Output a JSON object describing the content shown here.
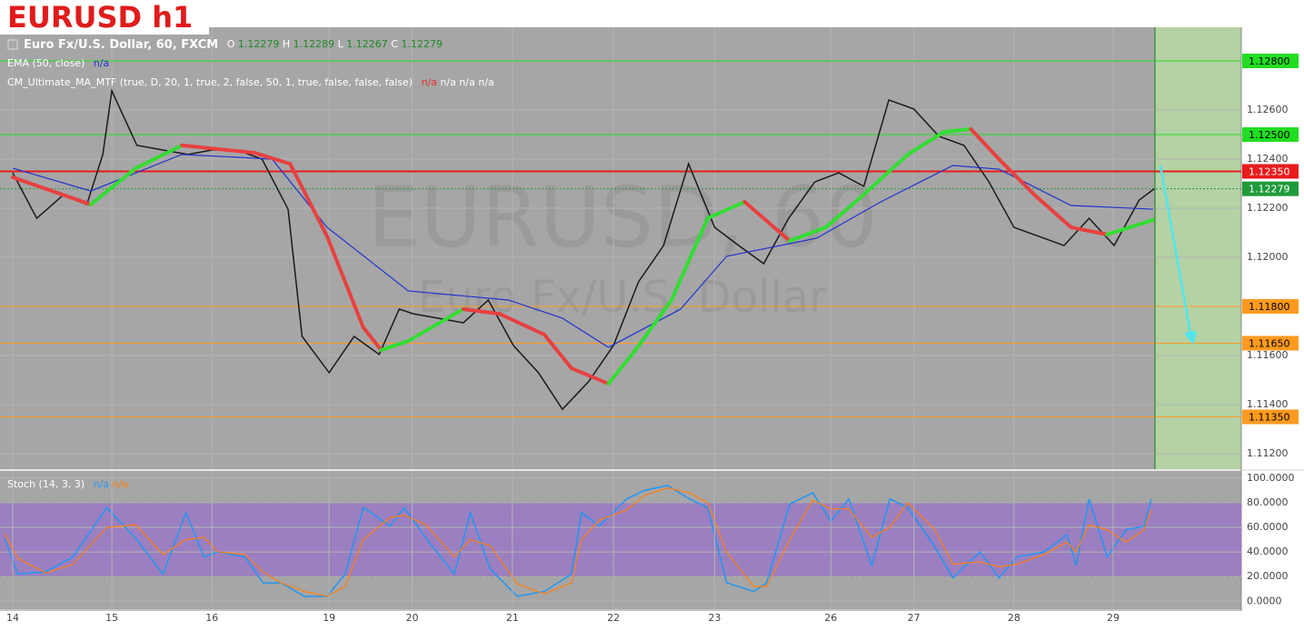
{
  "chart_data": [
    {
      "type": "line",
      "title": "EURUSD h1",
      "symbol": "Euro Fx/U.S. Dollar, 60, FXCM",
      "ohlc": [
        {
          "key": "O",
          "value": 1.12279
        },
        {
          "key": "H",
          "value": 1.12289
        },
        {
          "key": "L",
          "value": 1.12267
        },
        {
          "key": "C",
          "value": 1.12279
        }
      ],
      "indicators": [
        {
          "label": "EMA (50, close)",
          "values": [
            {
              "text": "n/a",
              "color": "#2233cc"
            }
          ]
        },
        {
          "label": "CM_Ultimate_MA_MTF (true, D, 20, 1, true, 2, false, 50, 1, true, false, false, false)",
          "values": [
            {
              "text": "n/a",
              "color": "#e83030"
            },
            {
              "text": "n/a n/a n/a",
              "color": "#ffffff"
            }
          ]
        }
      ],
      "watermark": [
        "EURUSD, 60",
        "Euro Fx/U.S. Dollar"
      ],
      "xlim": [
        -0.127,
        12.27
      ],
      "ylim": [
        1.11137,
        1.12937
      ],
      "yticks": [
        {
          "value": 1.112,
          "label": "1.11200"
        },
        {
          "value": 1.114,
          "label": "1.11400"
        },
        {
          "value": 1.116,
          "label": "1.11600"
        },
        {
          "value": 1.118,
          "label": "1.11800"
        },
        {
          "value": 1.12,
          "label": "1.12000"
        },
        {
          "value": 1.122,
          "label": "1.12200"
        },
        {
          "value": 1.124,
          "label": "1.12400"
        },
        {
          "value": 1.126,
          "label": "1.12600"
        }
      ],
      "grid": true,
      "series": [
        {
          "color": "#1a1a1a",
          "x": [
            0,
            0.24,
            0.5,
            0.74,
            0.9,
            0.99,
            1.24,
            1.5,
            1.75,
            1.99,
            2.24,
            2.49,
            2.75,
            2.89,
            3.16,
            3.41,
            3.66,
            3.86,
            4.0,
            4.25,
            4.5,
            4.75,
            5.0,
            5.25,
            5.49,
            5.75,
            6.0,
            6.25,
            6.5,
            6.75,
            7.01,
            7.25,
            7.5,
            7.75,
            8.01,
            8.25,
            8.5,
            8.75,
            9.0,
            9.25,
            9.5,
            9.75,
            10.0,
            10.25,
            10.5,
            10.75,
            11.0,
            11.25,
            11.4
          ],
          "values": [
            1.12344,
            1.12159,
            1.12252,
            1.12215,
            1.12419,
            1.12678,
            1.12456,
            1.12437,
            1.12419,
            1.12437,
            1.12437,
            1.124,
            1.12196,
            1.11678,
            1.1153,
            1.11678,
            1.11604,
            1.11789,
            1.1177,
            1.11752,
            1.11733,
            1.11826,
            1.11641,
            1.1153,
            1.11381,
            1.11493,
            1.11641,
            1.119,
            1.12048,
            1.12381,
            1.12122,
            1.12048,
            1.11974,
            1.12159,
            1.12307,
            1.12344,
            1.12289,
            1.12641,
            1.12604,
            1.12493,
            1.12456,
            1.12307,
            1.12122,
            1.12085,
            1.12048,
            1.12159,
            1.12048,
            1.12233,
            1.12279
          ]
        },
        {
          "color": "#2233cc",
          "x": [
            0,
            0.78,
            1.69,
            2.59,
            3.14,
            3.95,
            4.95,
            5.49,
            5.95,
            6.67,
            7.13,
            8.03,
            8.67,
            9.39,
            9.85,
            10.57,
            11.39
          ],
          "values": [
            1.12363,
            1.1227,
            1.12419,
            1.124,
            1.12122,
            1.11863,
            1.11826,
            1.11752,
            1.11633,
            1.11789,
            1.12004,
            1.12078,
            1.12226,
            1.12374,
            1.12359,
            1.12211,
            1.12196
          ]
        },
        {
          "color": "#33dd33",
          "down_color": "#e84040",
          "x": [
            0,
            0.78,
            1.23,
            1.69,
            2.41,
            2.77,
            3.14,
            3.5,
            3.68,
            3.95,
            4.5,
            4.86,
            5.31,
            5.58,
            5.95,
            6.22,
            6.58,
            6.94,
            7.31,
            7.76,
            8.12,
            8.49,
            8.94,
            9.3,
            9.57,
            9.85,
            10.21,
            10.57,
            10.93,
            11.39
          ],
          "values": [
            1.12326,
            1.12215,
            1.12363,
            1.12456,
            1.12426,
            1.12381,
            1.12085,
            1.11715,
            1.11622,
            1.11659,
            1.11789,
            1.1177,
            1.11685,
            1.11548,
            1.11485,
            1.11622,
            1.11826,
            1.12159,
            1.12226,
            1.12067,
            1.12122,
            1.12252,
            1.12419,
            1.12511,
            1.12522,
            1.124,
            1.12252,
            1.12122,
            1.12093,
            1.12152
          ]
        }
      ],
      "levels": [
        {
          "value": 1.128,
          "label": "1.12800",
          "color": "#22dd22",
          "text_color": "#000000"
        },
        {
          "value": 1.125,
          "label": "1.12500",
          "color": "#22dd22",
          "text_color": "#000000"
        },
        {
          "value": 1.1235,
          "label": "1.12350",
          "color": "#e81c1c",
          "text_color": "#ffffff"
        },
        {
          "value": 1.12279,
          "color": "#1f9a3a",
          "text_color": "#ffffff",
          "dashed": true
        },
        {
          "value": 1.118,
          "label": "1.11800",
          "color": "#ff9a1f",
          "text_color": "#000000"
        },
        {
          "value": 1.1165,
          "label": "1.11650",
          "color": "#ff9a1f",
          "text_color": "#000000"
        },
        {
          "value": 1.1135,
          "label": "1.11350",
          "color": "#ff9a1f",
          "text_color": "#000000"
        }
      ]
    },
    {
      "type": "line",
      "indicator": {
        "label": "Stoch (14, 3, 3)",
        "values": [
          {
            "text": "n/a",
            "color": "#2196f3"
          },
          {
            "text": "n/a",
            "color": "#ff7f0e"
          }
        ]
      },
      "xlim": [
        -0.127,
        12.27
      ],
      "xticks": [
        {
          "value": 0,
          "label": "14"
        },
        {
          "value": 0.99,
          "label": "15"
        },
        {
          "value": 1.99,
          "label": "16"
        },
        {
          "value": 3.16,
          "label": "19"
        },
        {
          "value": 3.99,
          "label": "20"
        },
        {
          "value": 4.99,
          "label": "21"
        },
        {
          "value": 6.0,
          "label": "22"
        },
        {
          "value": 7.01,
          "label": "23"
        },
        {
          "value": 8.17,
          "label": "26"
        },
        {
          "value": 9.0,
          "label": "27"
        },
        {
          "value": 10.0,
          "label": "28"
        },
        {
          "value": 10.99,
          "label": "29"
        }
      ],
      "ylim": [
        -6.43,
        103.57
      ],
      "yticks": [
        {
          "value": 0,
          "label": "0.0000"
        },
        {
          "value": 20,
          "label": "20.0000"
        },
        {
          "value": 40,
          "label": "40.0000"
        },
        {
          "value": 60,
          "label": "60.0000"
        },
        {
          "value": 80,
          "label": "80.0000"
        },
        {
          "value": 100,
          "label": "100.0000"
        }
      ],
      "band": [
        20,
        80
      ],
      "band_color": "#9b7fc0",
      "grid": true,
      "x": [
        -0.08,
        0.05,
        0.33,
        0.6,
        0.94,
        1.23,
        1.5,
        1.73,
        1.91,
        2.05,
        2.32,
        2.5,
        2.68,
        2.91,
        3.14,
        3.32,
        3.5,
        3.77,
        3.91,
        4.13,
        4.41,
        4.57,
        4.77,
        5.04,
        5.31,
        5.58,
        5.68,
        5.86,
        6.13,
        6.31,
        6.54,
        6.76,
        6.94,
        7.13,
        7.4,
        7.53,
        7.76,
        7.99,
        8.17,
        8.35,
        8.58,
        8.76,
        8.94,
        9.21,
        9.39,
        9.66,
        9.85,
        10.03,
        10.3,
        10.53,
        10.62,
        10.75,
        10.93,
        11.12,
        11.3,
        11.37
      ],
      "series": [
        {
          "color": "#2196f3",
          "values": [
            51,
            22,
            24,
            36,
            76,
            51,
            22,
            72,
            36,
            40,
            36,
            15,
            15,
            4,
            4,
            22,
            76,
            61,
            76,
            51,
            22,
            72,
            26,
            4,
            8,
            22,
            72,
            61,
            83,
            90,
            94,
            83,
            76,
            15,
            8,
            15,
            79,
            88,
            65,
            83,
            29,
            83,
            76,
            44,
            19,
            40,
            19,
            36,
            40,
            54,
            29,
            83,
            36,
            58,
            61,
            83
          ]
        },
        {
          "color": "#ff7f0e",
          "values": [
            55,
            35,
            23,
            30,
            60,
            62,
            38,
            50,
            52,
            40,
            38,
            24,
            15,
            8,
            4,
            12,
            50,
            68,
            70,
            62,
            36,
            50,
            45,
            14,
            6,
            15,
            50,
            66,
            74,
            86,
            92,
            88,
            80,
            40,
            12,
            12,
            50,
            82,
            75,
            75,
            52,
            60,
            80,
            58,
            30,
            32,
            28,
            30,
            38,
            48,
            40,
            62,
            58,
            48,
            58,
            74
          ]
        }
      ]
    }
  ]
}
